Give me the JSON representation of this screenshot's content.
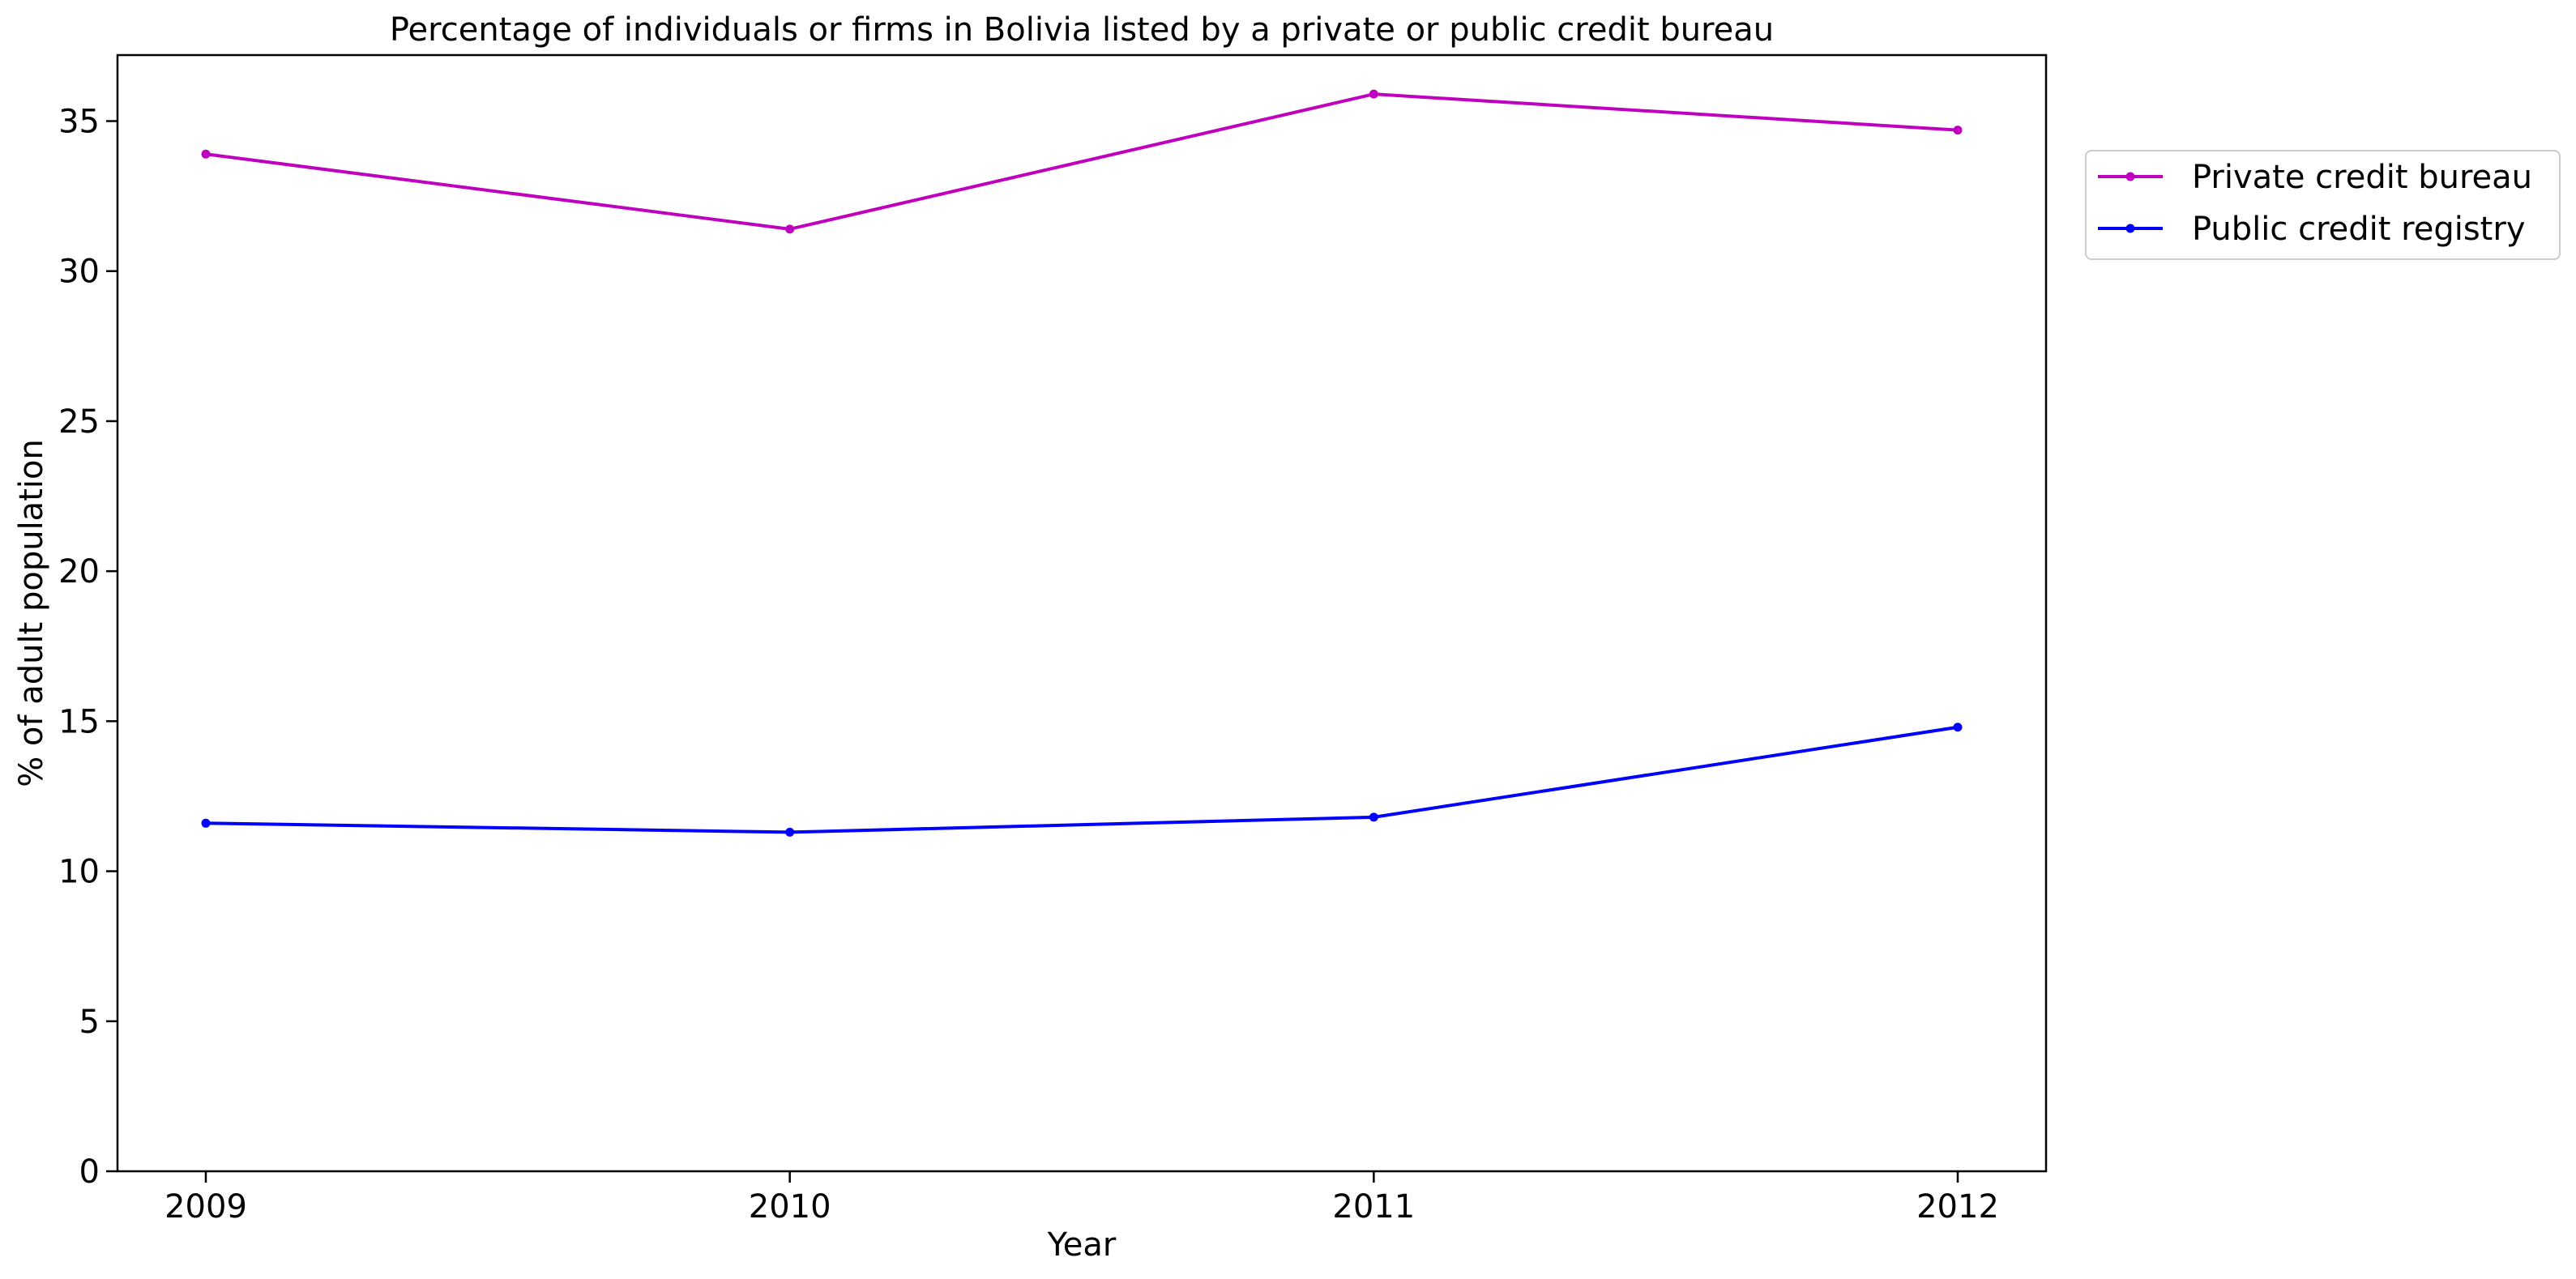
{
  "chart_data": {
    "type": "line",
    "title": "Percentage of individuals or firms in Bolivia listed by a private or public credit bureau",
    "xlabel": "Year",
    "ylabel": "% of adult population",
    "x": [
      "2009",
      "2010",
      "2011",
      "2012"
    ],
    "ylim": [
      0,
      37.2
    ],
    "yticks": [
      0,
      5,
      10,
      15,
      20,
      25,
      30,
      35
    ],
    "grid": false,
    "legend_position": "outside top-right",
    "series": [
      {
        "name": "Private credit bureau",
        "color": "#bf00bf",
        "values": [
          33.9,
          31.4,
          35.9,
          34.7
        ]
      },
      {
        "name": "Public credit registry",
        "color": "#0000ff",
        "values": [
          11.6,
          11.3,
          11.8,
          14.8
        ]
      }
    ]
  }
}
